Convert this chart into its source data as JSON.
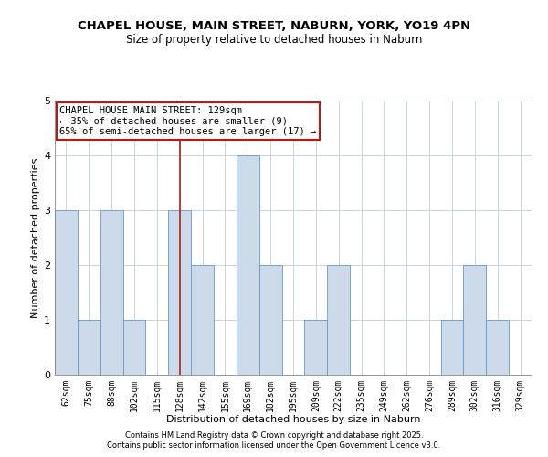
{
  "title": "CHAPEL HOUSE, MAIN STREET, NABURN, YORK, YO19 4PN",
  "subtitle": "Size of property relative to detached houses in Naburn",
  "xlabel": "Distribution of detached houses by size in Naburn",
  "ylabel": "Number of detached properties",
  "bar_labels": [
    "62sqm",
    "75sqm",
    "88sqm",
    "102sqm",
    "115sqm",
    "128sqm",
    "142sqm",
    "155sqm",
    "169sqm",
    "182sqm",
    "195sqm",
    "209sqm",
    "222sqm",
    "235sqm",
    "249sqm",
    "262sqm",
    "276sqm",
    "289sqm",
    "302sqm",
    "316sqm",
    "329sqm"
  ],
  "bar_values": [
    3,
    1,
    3,
    1,
    0,
    3,
    2,
    0,
    4,
    2,
    0,
    1,
    2,
    0,
    0,
    0,
    0,
    1,
    2,
    1,
    0
  ],
  "bar_color": "#ccdaea",
  "bar_edge_color": "#6699cc",
  "highlight_index": 5,
  "highlight_line_color": "#aa2211",
  "highlight_box_color": "#cc1111",
  "annotation_title": "CHAPEL HOUSE MAIN STREET: 129sqm",
  "annotation_line1": "← 35% of detached houses are smaller (9)",
  "annotation_line2": "65% of semi-detached houses are larger (17) →",
  "ylim": [
    0,
    5
  ],
  "yticks": [
    0,
    1,
    2,
    3,
    4,
    5
  ],
  "footnote1": "Contains HM Land Registry data © Crown copyright and database right 2025.",
  "footnote2": "Contains public sector information licensed under the Open Government Licence v3.0.",
  "bg_color": "#ffffff",
  "grid_color": "#c8d4e0",
  "title_fontsize": 9.5,
  "subtitle_fontsize": 8.5,
  "axis_label_fontsize": 8,
  "tick_fontsize": 7,
  "annot_fontsize": 7.5,
  "footnote_fontsize": 6
}
